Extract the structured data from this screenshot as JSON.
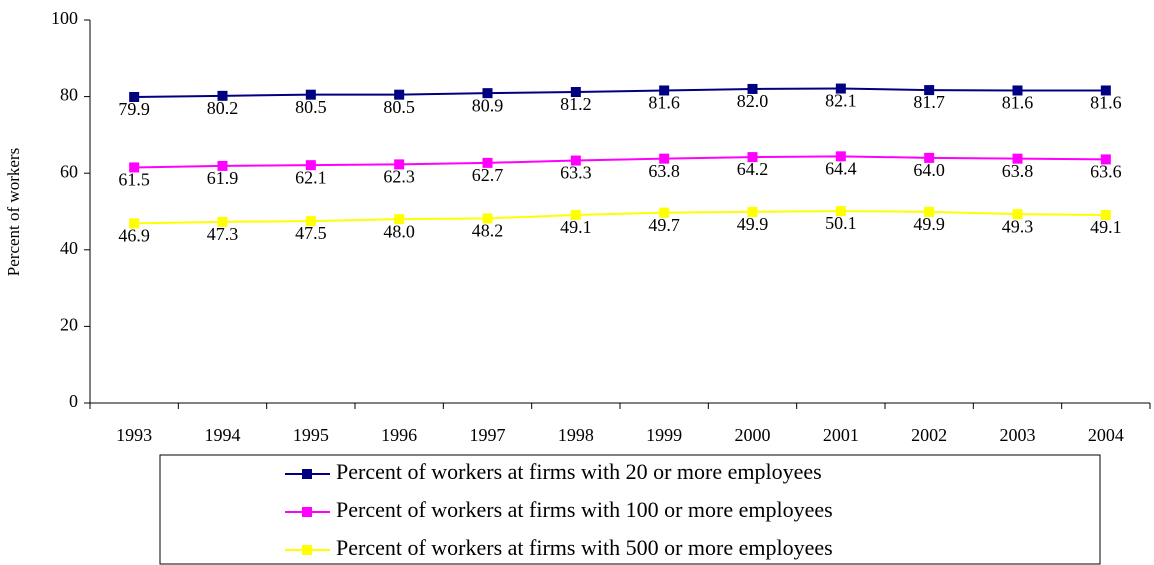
{
  "chart_data": {
    "type": "line",
    "y_label": "Percent of workers",
    "categories": [
      "1993",
      "1994",
      "1995",
      "1996",
      "1997",
      "1998",
      "1999",
      "2000",
      "2001",
      "2002",
      "2003",
      "2004"
    ],
    "series": [
      {
        "name": "Percent of workers at firms with 20 or more employees",
        "color": "#000080",
        "values": [
          79.9,
          80.2,
          80.5,
          80.5,
          80.9,
          81.2,
          81.6,
          82.0,
          82.1,
          81.7,
          81.6,
          81.6
        ],
        "value_labels": [
          "79.9",
          "80.2",
          "80.5",
          "80.5",
          "80.9",
          "81.2",
          "81.6",
          "82.0",
          "82.1",
          "81.7",
          "81.6",
          "81.6"
        ]
      },
      {
        "name": "Percent of workers at firms with 100 or more employees",
        "color": "#ff00ff",
        "values": [
          61.5,
          61.9,
          62.1,
          62.3,
          62.7,
          63.3,
          63.8,
          64.2,
          64.4,
          64.0,
          63.8,
          63.6
        ],
        "value_labels": [
          "61.5",
          "61.9",
          "62.1",
          "62.3",
          "62.7",
          "63.3",
          "63.8",
          "64.2",
          "64.4",
          "64.0",
          "63.8",
          "63.6"
        ]
      },
      {
        "name": "Percent of workers at firms with 500 or more employees",
        "color": "#ffff00",
        "values": [
          46.9,
          47.3,
          47.5,
          48.0,
          48.2,
          49.1,
          49.7,
          49.9,
          50.1,
          49.9,
          49.3,
          49.1
        ],
        "value_labels": [
          "46.9",
          "47.3",
          "47.5",
          "48.0",
          "48.2",
          "49.1",
          "49.7",
          "49.9",
          "50.1",
          "49.9",
          "49.3",
          "49.1"
        ]
      }
    ],
    "ylim": [
      0,
      100
    ],
    "yticks": [
      0,
      20,
      40,
      60,
      80,
      100
    ],
    "legend": "bottom"
  }
}
